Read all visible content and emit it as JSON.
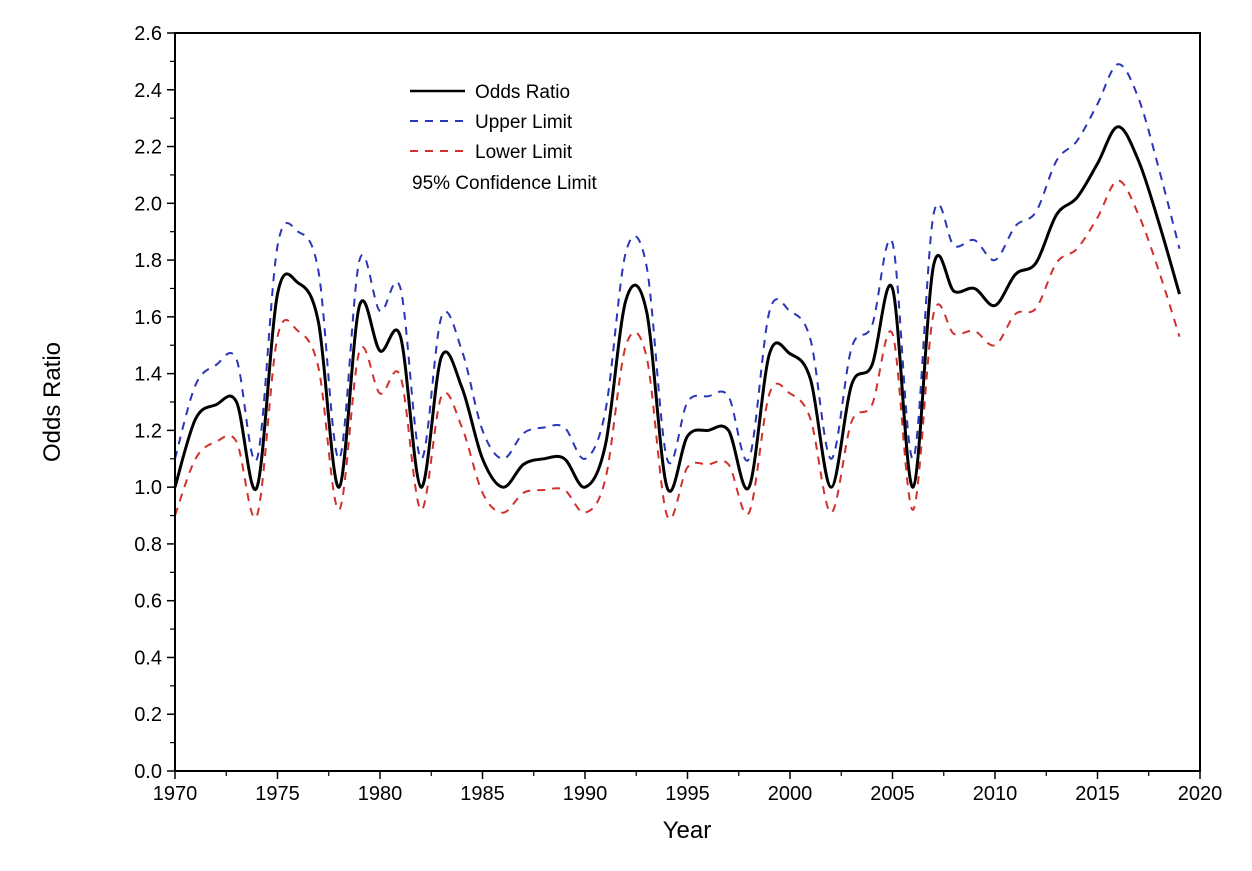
{
  "chart_data": {
    "type": "line",
    "xlabel": "Year",
    "ylabel": "Odds Ratio",
    "xlim": [
      1970,
      2020
    ],
    "ylim": [
      0.0,
      2.6
    ],
    "xticks": [
      "1970",
      "1975",
      "1980",
      "1985",
      "1990",
      "1995",
      "2000",
      "2005",
      "2010",
      "2015",
      "2020"
    ],
    "yticks": [
      "0.0",
      "0.2",
      "0.4",
      "0.6",
      "0.8",
      "1.0",
      "1.2",
      "1.4",
      "1.6",
      "1.8",
      "2.0",
      "2.2",
      "2.4",
      "2.6"
    ],
    "grid": false,
    "legend_position": "top-left",
    "legend_note": "95% Confidence Limit",
    "x": [
      1970,
      1971,
      1972,
      1973,
      1974,
      1975,
      1976,
      1977,
      1978,
      1979,
      1980,
      1981,
      1982,
      1983,
      1984,
      1985,
      1986,
      1987,
      1988,
      1989,
      1990,
      1991,
      1992,
      1993,
      1994,
      1995,
      1996,
      1997,
      1998,
      1999,
      2000,
      2001,
      2002,
      2003,
      2004,
      2005,
      2006,
      2007,
      2008,
      2009,
      2010,
      2011,
      2012,
      2013,
      2014,
      2015,
      2016,
      2017,
      2018,
      2019
    ],
    "series": [
      {
        "name": "Odds Ratio",
        "color": "#000000",
        "dash": "solid",
        "values": [
          1.0,
          1.24,
          1.29,
          1.3,
          1.0,
          1.68,
          1.72,
          1.58,
          1.0,
          1.64,
          1.48,
          1.53,
          1.0,
          1.46,
          1.35,
          1.1,
          1.0,
          1.08,
          1.1,
          1.1,
          1.0,
          1.15,
          1.66,
          1.62,
          1.0,
          1.18,
          1.2,
          1.2,
          1.0,
          1.47,
          1.47,
          1.38,
          1.0,
          1.36,
          1.43,
          1.7,
          1.0,
          1.78,
          1.69,
          1.7,
          1.64,
          1.75,
          1.79,
          1.96,
          2.02,
          2.14,
          2.27,
          2.15,
          1.93,
          1.68
        ]
      },
      {
        "name": "Upper Limit",
        "color": "#2a36b8",
        "dash": "dashed",
        "values": [
          1.1,
          1.36,
          1.43,
          1.45,
          1.1,
          1.85,
          1.9,
          1.76,
          1.1,
          1.8,
          1.62,
          1.7,
          1.1,
          1.6,
          1.48,
          1.2,
          1.1,
          1.19,
          1.21,
          1.21,
          1.1,
          1.27,
          1.83,
          1.78,
          1.1,
          1.3,
          1.32,
          1.32,
          1.1,
          1.62,
          1.62,
          1.52,
          1.1,
          1.49,
          1.57,
          1.86,
          1.1,
          1.96,
          1.85,
          1.87,
          1.8,
          1.92,
          1.97,
          2.15,
          2.22,
          2.35,
          2.49,
          2.37,
          2.12,
          1.84
        ]
      },
      {
        "name": "Lower Limit",
        "color": "#d0312d",
        "dash": "dashed",
        "values": [
          0.9,
          1.1,
          1.16,
          1.16,
          0.9,
          1.53,
          1.55,
          1.42,
          0.92,
          1.48,
          1.33,
          1.39,
          0.92,
          1.32,
          1.21,
          0.98,
          0.91,
          0.98,
          0.99,
          0.99,
          0.91,
          1.03,
          1.5,
          1.46,
          0.9,
          1.07,
          1.08,
          1.08,
          0.91,
          1.33,
          1.33,
          1.24,
          0.91,
          1.23,
          1.29,
          1.54,
          0.92,
          1.61,
          1.54,
          1.55,
          1.5,
          1.61,
          1.63,
          1.79,
          1.84,
          1.95,
          2.08,
          1.96,
          1.76,
          1.53
        ]
      }
    ]
  }
}
